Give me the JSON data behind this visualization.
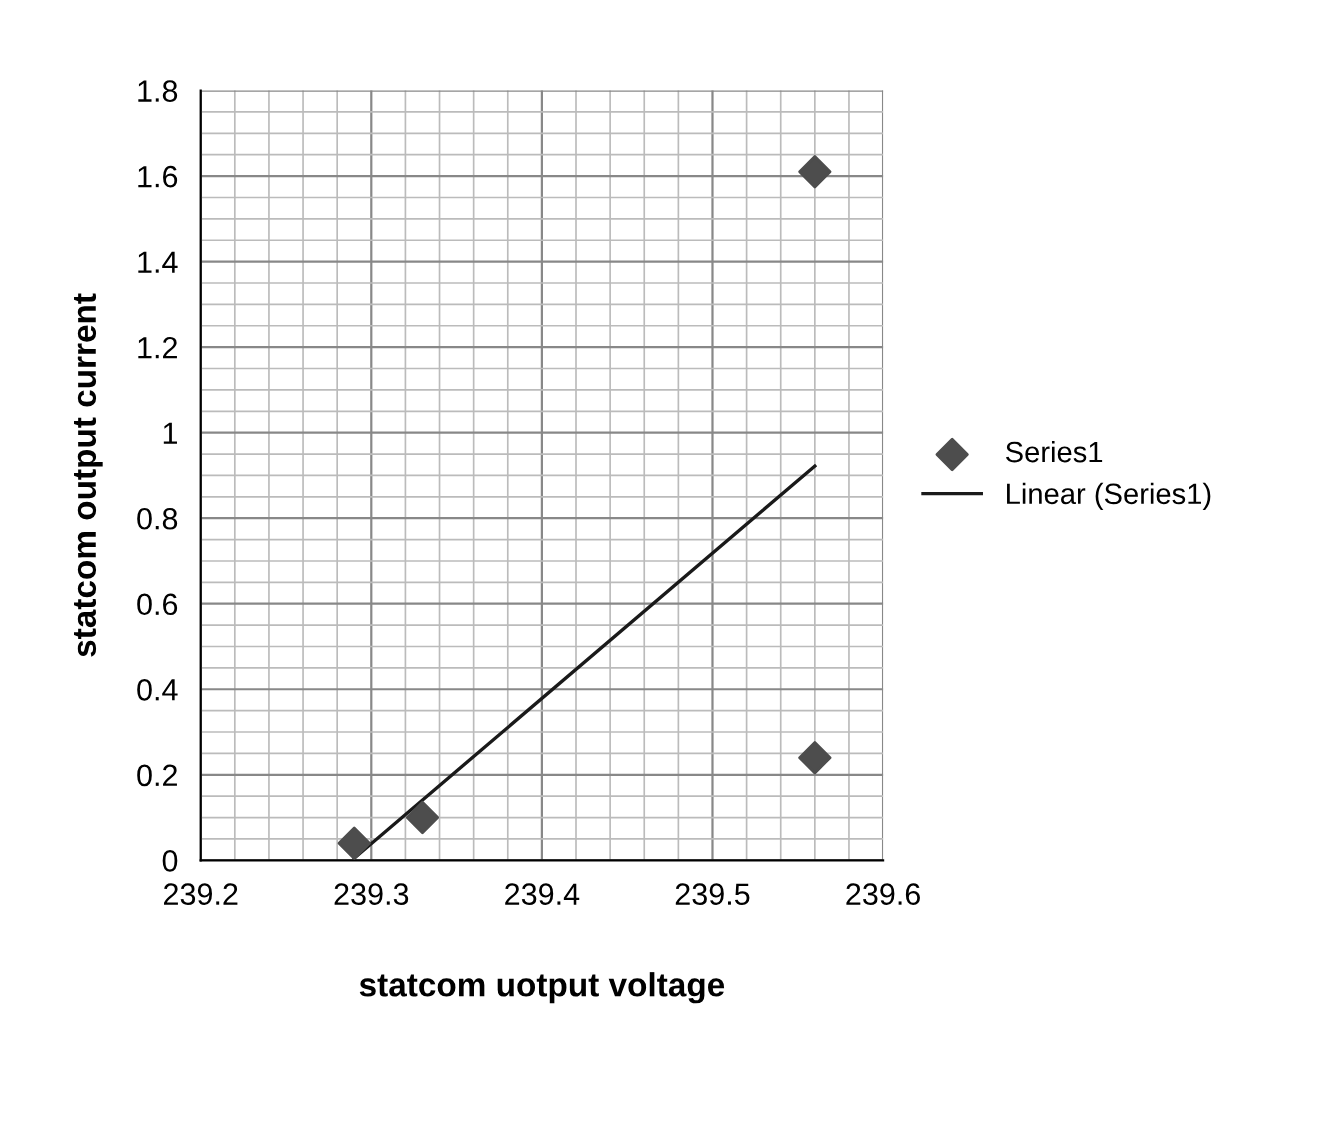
{
  "chart_data": {
    "type": "scatter",
    "xlabel": "statcom uotput voltage",
    "ylabel": "statcom output current",
    "series": [
      {
        "name": "Series1",
        "color": "#4d4d4d",
        "marker": "diamond",
        "x": [
          239.29,
          239.33,
          239.56,
          239.56
        ],
        "values": [
          0.04,
          0.1,
          1.61,
          0.24
        ]
      },
      {
        "name": "Linear (Series1)",
        "type": "line",
        "color": "#1a1a1a",
        "line_style": "solid",
        "x": [
          239.29,
          239.56
        ],
        "values": [
          0.005,
          0.922
        ]
      }
    ],
    "xlim": [
      239.2,
      239.6
    ],
    "xticks": [
      239.2,
      239.3,
      239.4,
      239.5,
      239.6
    ],
    "ylim": [
      0,
      1.8
    ],
    "yticks": [
      0,
      0.2,
      0.4,
      0.6,
      0.8,
      1,
      1.2,
      1.4,
      1.6,
      1.8
    ],
    "grid": true,
    "legend": "right"
  }
}
